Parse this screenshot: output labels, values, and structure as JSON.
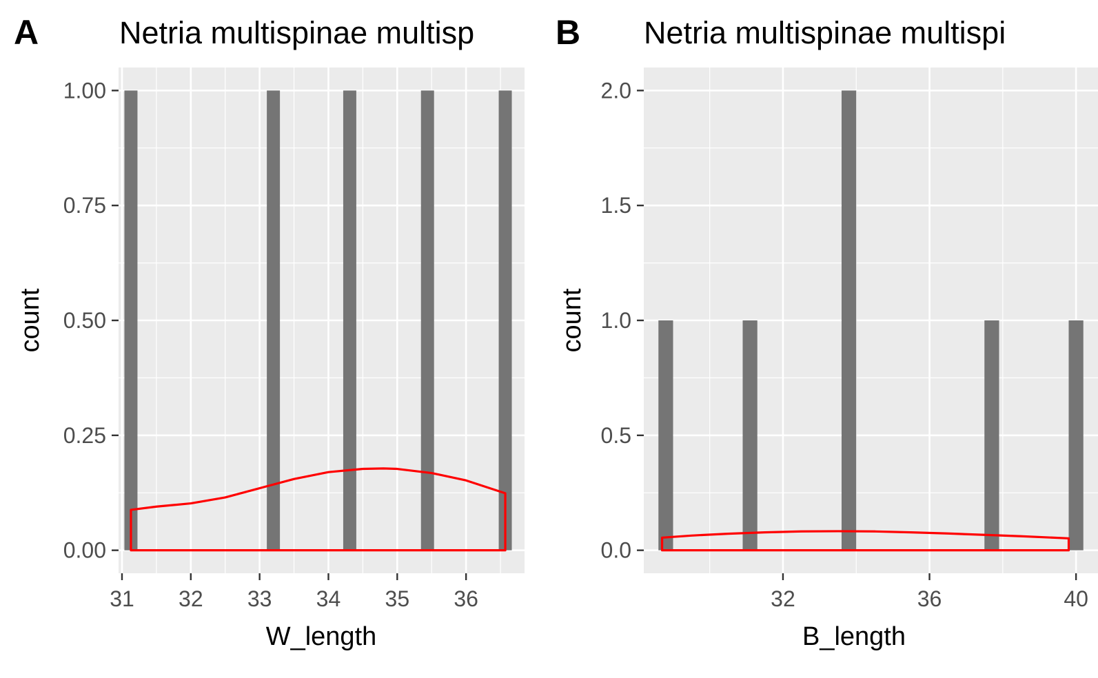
{
  "chart_data": [
    {
      "panel": "A",
      "type": "bar",
      "title": "Netria multispinae multisp",
      "xlabel": "W_length",
      "ylabel": "count",
      "xlim": [
        30.95,
        36.85
      ],
      "ylim": [
        -0.05,
        1.05
      ],
      "x_ticks": [
        31,
        32,
        33,
        34,
        35,
        36
      ],
      "x_tick_labels": [
        "31",
        "32",
        "33",
        "34",
        "35",
        "36"
      ],
      "y_ticks": [
        0,
        0.25,
        0.5,
        0.75,
        1.0
      ],
      "y_tick_labels": [
        "0.00",
        "0.25",
        "0.50",
        "0.75",
        "1.00"
      ],
      "bar_width": 0.19,
      "bars": [
        {
          "x": 31.13,
          "count": 1
        },
        {
          "x": 33.2,
          "count": 1
        },
        {
          "x": 34.31,
          "count": 1
        },
        {
          "x": 35.44,
          "count": 1
        },
        {
          "x": 36.57,
          "count": 1
        }
      ],
      "density": {
        "color": "#ff0000",
        "x": [
          31.13,
          31.5,
          32.0,
          32.5,
          33.0,
          33.5,
          34.0,
          34.5,
          34.8,
          35.0,
          35.5,
          36.0,
          36.57
        ],
        "y": [
          0.088,
          0.095,
          0.102,
          0.115,
          0.135,
          0.155,
          0.17,
          0.177,
          0.178,
          0.177,
          0.168,
          0.152,
          0.124
        ]
      },
      "grid": true,
      "panel_background": "#ebebeb",
      "bar_color": "#757575"
    },
    {
      "panel": "B",
      "type": "bar",
      "title": "Netria multispinae multispi",
      "xlabel": "B_length",
      "ylabel": "count",
      "xlim": [
        28.2,
        40.6
      ],
      "ylim": [
        -0.1,
        2.1
      ],
      "x_ticks": [
        32,
        36,
        40
      ],
      "x_tick_labels": [
        "32",
        "36",
        "40"
      ],
      "y_ticks": [
        0,
        0.5,
        1.0,
        1.5,
        2.0
      ],
      "y_tick_labels": [
        "0.0",
        "0.5",
        "1.0",
        "1.5",
        "2.0"
      ],
      "bar_width": 0.4,
      "bars": [
        {
          "x": 28.8,
          "count": 1
        },
        {
          "x": 31.1,
          "count": 1
        },
        {
          "x": 33.8,
          "count": 2
        },
        {
          "x": 37.7,
          "count": 1
        },
        {
          "x": 40.0,
          "count": 1
        }
      ],
      "density": {
        "color": "#ff0000",
        "x": [
          28.7,
          29.5,
          30.5,
          31.5,
          32.5,
          33.5,
          34.5,
          35.5,
          36.5,
          37.5,
          38.5,
          39.8
        ],
        "y": [
          0.055,
          0.064,
          0.072,
          0.078,
          0.082,
          0.083,
          0.082,
          0.078,
          0.073,
          0.067,
          0.061,
          0.052
        ]
      },
      "grid": true,
      "panel_background": "#ebebeb",
      "bar_color": "#757575"
    }
  ]
}
